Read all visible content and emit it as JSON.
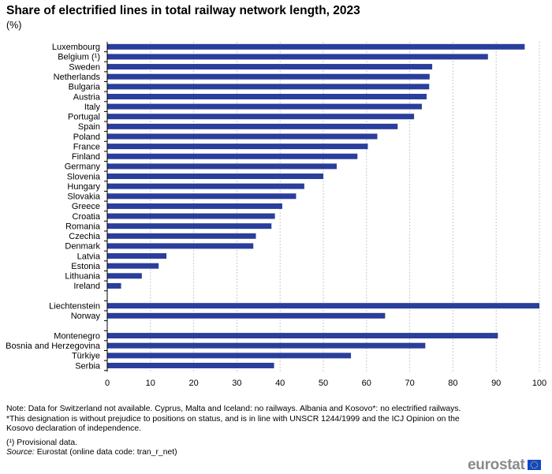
{
  "title": "Share of electrified lines in total railway network length, 2023",
  "subtitle": "(%)",
  "chart_data": {
    "type": "bar",
    "orientation": "horizontal",
    "xlim": [
      0,
      100
    ],
    "x_ticks": [
      0,
      10,
      20,
      30,
      40,
      50,
      60,
      70,
      80,
      90,
      100
    ],
    "grid": "vertical dashed",
    "groups": [
      {
        "categories": [
          "Luxembourg",
          "Belgium (¹)",
          "Sweden",
          "Netherlands",
          "Bulgaria",
          "Austria",
          "Italy",
          "Portugal",
          "Spain",
          "Poland",
          "France",
          "Finland",
          "Germany",
          "Slovenia",
          "Hungary",
          "Slovakia",
          "Greece",
          "Croatia",
          "Romania",
          "Czechia",
          "Denmark",
          "Latvia",
          "Estonia",
          "Lithuania",
          "Ireland"
        ],
        "values": [
          96.6,
          88.1,
          75.2,
          74.6,
          74.5,
          73.9,
          72.8,
          71.0,
          67.2,
          62.5,
          60.3,
          57.9,
          53.1,
          50.0,
          45.6,
          43.7,
          40.5,
          38.8,
          38.0,
          34.4,
          33.8,
          13.7,
          11.9,
          8.0,
          3.2
        ]
      },
      {
        "categories": [
          "Liechtenstein",
          "Norway"
        ],
        "values": [
          100.0,
          64.3
        ]
      },
      {
        "categories": [
          "Montenegro",
          "Bosnia and Herzegovina",
          "Türkiye",
          "Serbia"
        ],
        "values": [
          90.4,
          73.6,
          56.4,
          38.6
        ]
      }
    ],
    "bar_color": "#2a3e9b"
  },
  "notes": {
    "note1": "Note: Data for Switzerland not available. Cyprus, Malta and Iceland:  no railways. Albania and Kosovo*: no electrified railways.",
    "note2": "*This designation is without prejudice to positions on status, and is in line with UNSCR 1244/1999 and the ICJ Opinion on the Kosovo declaration of independence.",
    "note3": "(¹) Provisional data.",
    "source_label": "Source:",
    "source_text": " Eurostat (online data code: tran_r_net)"
  },
  "logo": {
    "text": "eurostat",
    "flag_color": "#0e47cb",
    "star_color": "#ffdd00"
  }
}
